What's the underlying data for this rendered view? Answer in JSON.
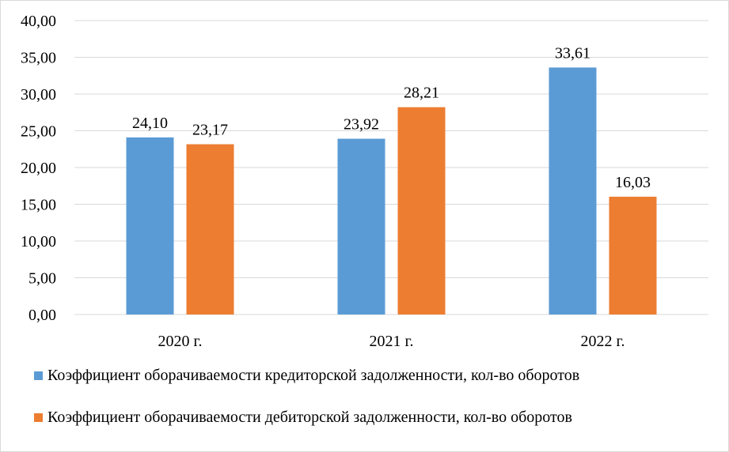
{
  "chart_data": {
    "type": "bar",
    "title": "",
    "xlabel": "",
    "ylabel": "",
    "categories": [
      "2020 г.",
      "2021 г.",
      "2022 г."
    ],
    "series": [
      {
        "name": "Коэффициент оборачиваемости кредиторской задолженности, кол-во оборотов",
        "values": [
          24.1,
          23.92,
          33.61
        ],
        "labels": [
          "24,10",
          "23,92",
          "33,61"
        ],
        "color": "#5b9bd5"
      },
      {
        "name": "Коэффициент оборачиваемости дебиторской задолженности, кол-во оборотов",
        "values": [
          23.17,
          28.21,
          16.03
        ],
        "labels": [
          "23,17",
          "28,21",
          "16,03"
        ],
        "color": "#ed7d31"
      }
    ],
    "ylim": [
      0,
      40
    ],
    "yticks": [
      0,
      5,
      10,
      15,
      20,
      25,
      30,
      35,
      40
    ],
    "ytick_labels": [
      "0,00",
      "5,00",
      "10,00",
      "15,00",
      "20,00",
      "25,00",
      "30,00",
      "35,00",
      "40,00"
    ],
    "grid": true,
    "gridline_color": "#d9d9d9",
    "legend_position": "bottom"
  }
}
